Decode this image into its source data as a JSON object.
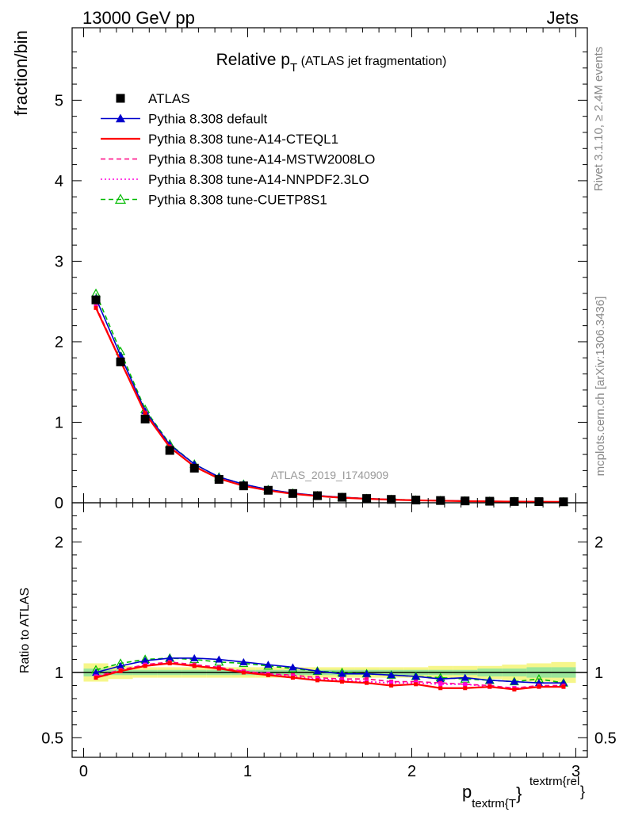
{
  "header": {
    "left": "13000 GeV pp",
    "right": "Jets"
  },
  "side_labels": {
    "rivet": "Rivet 3.1.10, ≥ 2.4M events",
    "mcplots": "mcplots.cern.ch [arXiv:1306.3436]"
  },
  "chart_data": [
    {
      "type": "line",
      "panel": "main",
      "title_main": "Relative p",
      "title_sub": "T",
      "title_rest": " (ATLAS jet fragmentation)",
      "ylabel": "fraction/bin",
      "watermark": "ATLAS_2019_I1740909",
      "xlim": [
        -0.07,
        3.07
      ],
      "ylim": [
        0,
        5.9
      ],
      "yticks": [
        0,
        1,
        2,
        3,
        4,
        5
      ],
      "ytick_labels": [
        "0",
        "1",
        "2",
        "3",
        "4",
        "5"
      ],
      "legend_position": "top-center",
      "x": [
        0.075,
        0.225,
        0.375,
        0.525,
        0.675,
        0.825,
        0.975,
        1.125,
        1.275,
        1.425,
        1.575,
        1.725,
        1.875,
        2.025,
        2.175,
        2.325,
        2.475,
        2.625,
        2.775,
        2.925
      ],
      "series": [
        {
          "name": "ATLAS",
          "color": "#000000",
          "style": "data",
          "values": [
            2.52,
            1.75,
            1.04,
            0.65,
            0.43,
            0.29,
            0.21,
            0.155,
            0.115,
            0.088,
            0.068,
            0.053,
            0.042,
            0.034,
            0.028,
            0.023,
            0.019,
            0.016,
            0.014,
            0.012
          ]
        },
        {
          "name": "Pythia 8.308 default",
          "color": "#0000cc",
          "style": "solid-tri",
          "values": [
            2.54,
            1.83,
            1.14,
            0.72,
            0.48,
            0.32,
            0.23,
            0.165,
            0.12,
            0.089,
            0.068,
            0.052,
            0.041,
            0.033,
            0.027,
            0.022,
            0.018,
            0.015,
            0.013,
            0.011
          ]
        },
        {
          "name": "Pythia 8.308 tune-A14-CTEQL1",
          "color": "#ff0000",
          "style": "solid",
          "values": [
            2.42,
            1.76,
            1.11,
            0.69,
            0.45,
            0.3,
            0.21,
            0.152,
            0.111,
            0.083,
            0.063,
            0.049,
            0.038,
            0.031,
            0.025,
            0.02,
            0.017,
            0.014,
            0.012,
            0.011
          ]
        },
        {
          "name": "Pythia 8.308 tune-A14-MSTW2008LO",
          "color": "#ff0080",
          "style": "dashed",
          "values": [
            2.44,
            1.77,
            1.12,
            0.7,
            0.45,
            0.3,
            0.21,
            0.154,
            0.113,
            0.085,
            0.065,
            0.05,
            0.039,
            0.032,
            0.026,
            0.021,
            0.017,
            0.014,
            0.012,
            0.011
          ]
        },
        {
          "name": "Pythia 8.308 tune-A14-NNPDF2.3LO",
          "color": "#ff00dd",
          "style": "dotted",
          "values": [
            2.43,
            1.77,
            1.11,
            0.69,
            0.45,
            0.3,
            0.21,
            0.153,
            0.112,
            0.084,
            0.064,
            0.05,
            0.039,
            0.031,
            0.025,
            0.021,
            0.017,
            0.014,
            0.012,
            0.011
          ]
        },
        {
          "name": "Pythia 8.308 tune-CUETP8S1",
          "color": "#00bb00",
          "style": "dashed-opentri",
          "values": [
            2.6,
            1.88,
            1.16,
            0.73,
            0.48,
            0.32,
            0.23,
            0.163,
            0.119,
            0.088,
            0.067,
            0.052,
            0.041,
            0.033,
            0.027,
            0.022,
            0.018,
            0.015,
            0.013,
            0.011
          ]
        }
      ]
    },
    {
      "type": "line",
      "panel": "ratio",
      "ylabel": "Ratio to ATLAS",
      "xlabel_main": "p",
      "xlabel_sub": "textrm{T",
      "xlabel_sup": "textrm{rel",
      "xlabel_brace": "}",
      "xlim": [
        -0.07,
        3.07
      ],
      "ylim": [
        0.35,
        2.3
      ],
      "yticks": [
        0.5,
        1,
        2
      ],
      "ytick_labels": [
        "0.5",
        "1",
        "2"
      ],
      "xticks": [
        0,
        1,
        2,
        3
      ],
      "xtick_labels": [
        "0",
        "1",
        "2",
        "3"
      ],
      "band_inner_halfwidth": [
        0.03,
        0.02,
        0.02,
        0.02,
        0.02,
        0.02,
        0.02,
        0.02,
        0.02,
        0.02,
        0.02,
        0.02,
        0.02,
        0.02,
        0.02,
        0.02,
        0.03,
        0.03,
        0.04,
        0.04
      ],
      "band_outer_halfwidth": [
        0.07,
        0.05,
        0.04,
        0.04,
        0.04,
        0.04,
        0.04,
        0.04,
        0.04,
        0.04,
        0.04,
        0.04,
        0.04,
        0.04,
        0.05,
        0.05,
        0.05,
        0.06,
        0.07,
        0.08
      ],
      "series": [
        {
          "name": "Pythia 8.308 default",
          "color": "#0000cc",
          "style": "solid-tri",
          "values": [
            1.0,
            1.05,
            1.09,
            1.11,
            1.11,
            1.1,
            1.08,
            1.06,
            1.04,
            1.01,
            0.99,
            0.99,
            0.98,
            0.97,
            0.95,
            0.96,
            0.94,
            0.93,
            0.92,
            0.92
          ]
        },
        {
          "name": "Pythia 8.308 tune-A14-CTEQL1",
          "color": "#ff0000",
          "style": "solid",
          "values": [
            0.96,
            1.01,
            1.05,
            1.07,
            1.05,
            1.03,
            1.0,
            0.98,
            0.96,
            0.94,
            0.93,
            0.92,
            0.9,
            0.91,
            0.88,
            0.88,
            0.89,
            0.87,
            0.89,
            0.89
          ]
        },
        {
          "name": "Pythia 8.308 tune-A14-MSTW2008LO",
          "color": "#ff0080",
          "style": "dashed",
          "values": [
            0.97,
            1.02,
            1.06,
            1.08,
            1.06,
            1.04,
            1.01,
            0.99,
            0.98,
            0.96,
            0.95,
            0.95,
            0.93,
            0.93,
            0.92,
            0.91,
            0.9,
            0.88,
            0.9,
            0.9
          ]
        },
        {
          "name": "Pythia 8.308 tune-A14-NNPDF2.3LO",
          "color": "#ff00dd",
          "style": "dotted",
          "values": [
            0.97,
            1.01,
            1.06,
            1.07,
            1.05,
            1.03,
            1.01,
            0.99,
            0.97,
            0.95,
            0.94,
            0.93,
            0.92,
            0.92,
            0.91,
            0.91,
            0.89,
            0.88,
            0.89,
            0.89
          ]
        },
        {
          "name": "Pythia 8.308 tune-CUETP8S1",
          "color": "#00bb00",
          "style": "dashed-opentri",
          "values": [
            1.02,
            1.07,
            1.1,
            1.11,
            1.1,
            1.08,
            1.07,
            1.05,
            1.03,
            1.01,
            1.0,
            0.99,
            0.98,
            0.97,
            0.96,
            0.95,
            0.94,
            0.93,
            0.95,
            0.92
          ]
        }
      ]
    }
  ]
}
